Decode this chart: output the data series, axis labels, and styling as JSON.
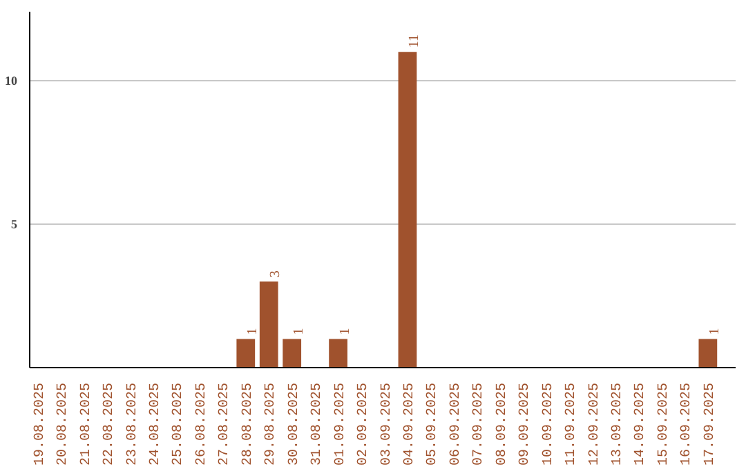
{
  "chart_data": {
    "type": "bar",
    "categories": [
      "19.08.2025",
      "20.08.2025",
      "21.08.2025",
      "22.08.2025",
      "23.08.2025",
      "24.08.2025",
      "25.08.2025",
      "26.08.2025",
      "27.08.2025",
      "28.08.2025",
      "29.08.2025",
      "30.08.2025",
      "31.08.2025",
      "01.09.2025",
      "02.09.2025",
      "03.09.2025",
      "04.09.2025",
      "05.09.2025",
      "06.09.2025",
      "07.09.2025",
      "08.09.2025",
      "09.09.2025",
      "10.09.2025",
      "11.09.2025",
      "12.09.2025",
      "13.09.2025",
      "14.09.2025",
      "15.09.2025",
      "16.09.2025",
      "17.09.2025"
    ],
    "values": [
      0,
      0,
      0,
      0,
      0,
      0,
      0,
      0,
      0,
      1,
      3,
      1,
      0,
      1,
      0,
      0,
      11,
      0,
      0,
      0,
      0,
      0,
      0,
      0,
      0,
      0,
      0,
      0,
      0,
      1
    ],
    "value_labels": [
      null,
      null,
      null,
      null,
      null,
      null,
      null,
      null,
      null,
      "1",
      "3",
      "1",
      null,
      "1",
      null,
      null,
      "11",
      null,
      null,
      null,
      null,
      null,
      null,
      null,
      null,
      null,
      null,
      null,
      null,
      "1"
    ],
    "color": "#a0522d",
    "ylim": [
      0,
      12.4
    ],
    "yticks": [
      5,
      10
    ],
    "grid": "y"
  }
}
